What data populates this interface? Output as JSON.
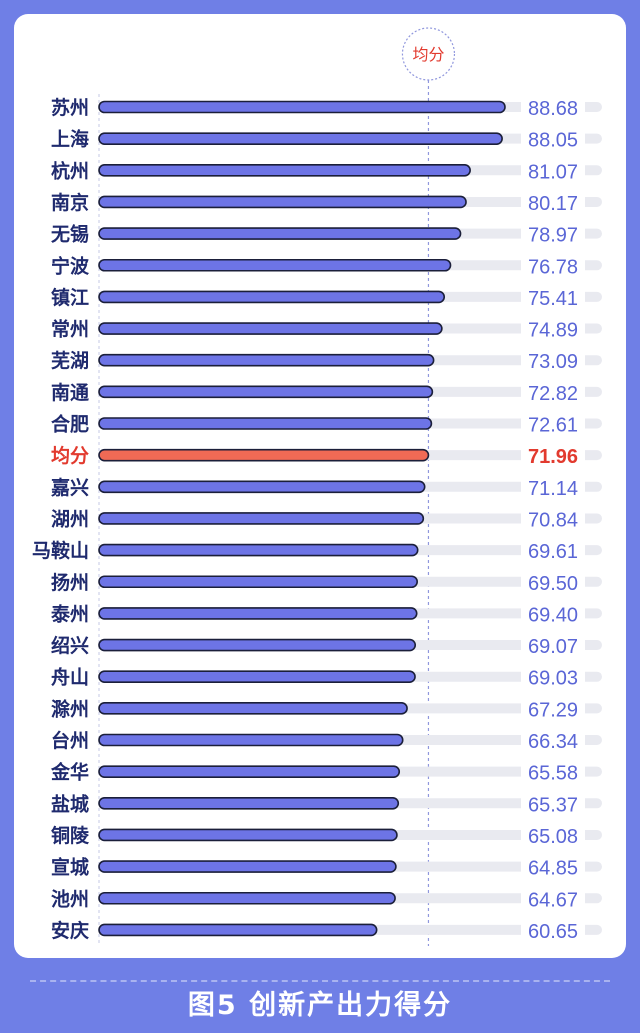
{
  "footer": {
    "title": "图5 创新产出力得分"
  },
  "colors": {
    "bar": "#6d74e6",
    "bar_outline": "#1b1f3a",
    "average_bar": "#f06a55",
    "average_text": "#e23a2e",
    "value_text": "#5a66d6",
    "label_text": "#1f2a6e",
    "track": "#e9eaf0",
    "average_marker": "#9097dd"
  },
  "chart_data": {
    "type": "bar",
    "orientation": "horizontal",
    "average_label": "均分",
    "average_value": 71.96,
    "categories": [
      "苏州",
      "上海",
      "杭州",
      "南京",
      "无锡",
      "宁波",
      "镇江",
      "常州",
      "芜湖",
      "南通",
      "合肥",
      "均分",
      "嘉兴",
      "湖州",
      "马鞍山",
      "扬州",
      "泰州",
      "绍兴",
      "舟山",
      "滁州",
      "台州",
      "金华",
      "盐城",
      "铜陵",
      "宣城",
      "池州",
      "安庆"
    ],
    "values": [
      88.68,
      88.05,
      81.07,
      80.17,
      78.97,
      76.78,
      75.41,
      74.89,
      73.09,
      72.82,
      72.61,
      71.96,
      71.14,
      70.84,
      69.61,
      69.5,
      69.4,
      69.07,
      69.03,
      67.29,
      66.34,
      65.58,
      65.37,
      65.08,
      64.85,
      64.67,
      60.65
    ],
    "value_labels": [
      "88.68",
      "88.05",
      "81.07",
      "80.17",
      "78.97",
      "76.78",
      "75.41",
      "74.89",
      "73.09",
      "72.82",
      "72.61",
      "71.96",
      "71.14",
      "70.84",
      "69.61",
      "69.50",
      "69.40",
      "69.07",
      "69.03",
      "67.29",
      "66.34",
      "65.58",
      "65.37",
      "65.08",
      "64.85",
      "64.67",
      "60.65"
    ],
    "highlight_index": 11
  }
}
